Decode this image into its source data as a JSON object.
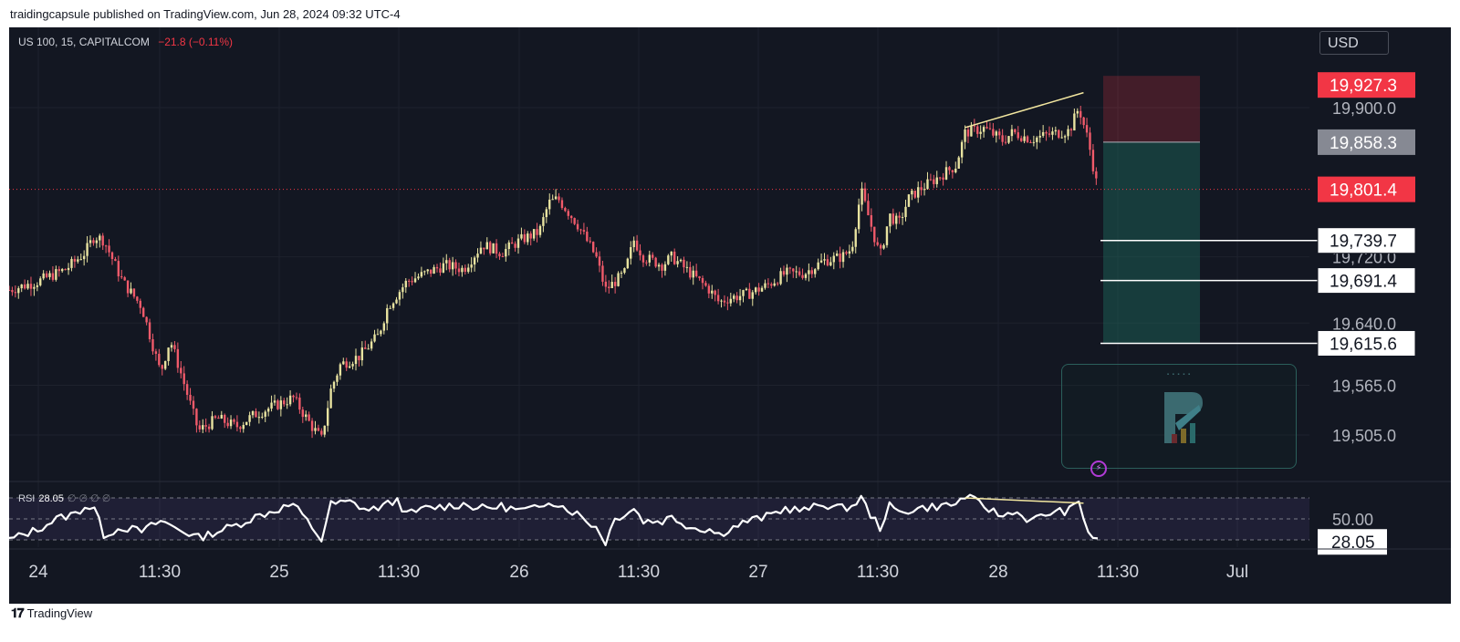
{
  "caption": "traidingcapsule published on TradingView.com, Jun 28, 2024 09:32 UTC-4",
  "symbol": {
    "name": "US 100, 15, CAPITALCOM",
    "change": "−21.8 (−0.11%)"
  },
  "currency": "USD",
  "brand": "TradingView",
  "rsi_legend": {
    "label": "RSI",
    "value": "28.05",
    "extras": "∅ ∅ ∅ ∅"
  },
  "colors": {
    "up": "#e8e3a0",
    "down": "#f05a6a",
    "background": "#131722",
    "stop": "#f23645",
    "target": "#1c6b5e"
  },
  "chart_data": {
    "type": "candlestick",
    "price_axis": {
      "range": [
        19465,
        19985
      ],
      "ticks": [
        "19,505.0",
        "19,565.0",
        "19,640.0",
        "19,720.0",
        "19,900.0"
      ]
    },
    "time_axis": {
      "labels": [
        "24",
        "11:30",
        "25",
        "11:30",
        "26",
        "11:30",
        "27",
        "11:30",
        "28",
        "11:30",
        "Jul"
      ]
    },
    "price_labels": [
      {
        "value": 19927.3,
        "text": "19,927.3",
        "style": "stop"
      },
      {
        "value": 19858.3,
        "text": "19,858.3",
        "style": "entry"
      },
      {
        "value": 19801.4,
        "text": "19,801.4",
        "style": "current"
      },
      {
        "value": 19739.7,
        "text": "19,739.7",
        "style": "level"
      },
      {
        "value": 19691.4,
        "text": "19,691.4",
        "style": "level"
      },
      {
        "value": 19615.6,
        "text": "19,615.6",
        "style": "level"
      }
    ],
    "position": {
      "entry": 19858.3,
      "stop": 19927.3,
      "target": 19615.6
    },
    "price_path": [
      [
        0,
        19680
      ],
      [
        3,
        19690
      ],
      [
        6,
        19705
      ],
      [
        8,
        19725
      ],
      [
        9,
        19745
      ],
      [
        10,
        19740
      ],
      [
        12,
        19690
      ],
      [
        14,
        19660
      ],
      [
        16,
        19580
      ],
      [
        17,
        19620
      ],
      [
        18,
        19585
      ],
      [
        20,
        19510
      ],
      [
        22,
        19525
      ],
      [
        24,
        19515
      ],
      [
        26,
        19530
      ],
      [
        28,
        19540
      ],
      [
        30,
        19550
      ],
      [
        32,
        19515
      ],
      [
        33,
        19500
      ],
      [
        34,
        19560
      ],
      [
        35,
        19590
      ],
      [
        37,
        19600
      ],
      [
        39,
        19625
      ],
      [
        40,
        19660
      ],
      [
        42,
        19690
      ],
      [
        44,
        19700
      ],
      [
        46,
        19710
      ],
      [
        48,
        19705
      ],
      [
        50,
        19735
      ],
      [
        52,
        19725
      ],
      [
        54,
        19740
      ],
      [
        56,
        19750
      ],
      [
        57,
        19785
      ],
      [
        58,
        19790
      ],
      [
        60,
        19760
      ],
      [
        62,
        19720
      ],
      [
        63,
        19680
      ],
      [
        64,
        19690
      ],
      [
        65,
        19700
      ],
      [
        66,
        19740
      ],
      [
        67,
        19720
      ],
      [
        69,
        19710
      ],
      [
        70,
        19720
      ],
      [
        72,
        19700
      ],
      [
        74,
        19680
      ],
      [
        75,
        19665
      ],
      [
        76,
        19670
      ],
      [
        78,
        19675
      ],
      [
        80,
        19685
      ],
      [
        82,
        19700
      ],
      [
        84,
        19700
      ],
      [
        86,
        19715
      ],
      [
        88,
        19720
      ],
      [
        89,
        19730
      ],
      [
        90,
        19800
      ],
      [
        91,
        19760
      ],
      [
        92,
        19720
      ],
      [
        93,
        19770
      ],
      [
        94,
        19760
      ],
      [
        95,
        19790
      ],
      [
        96,
        19800
      ],
      [
        98,
        19815
      ],
      [
        100,
        19830
      ],
      [
        101,
        19870
      ],
      [
        103,
        19875
      ],
      [
        105,
        19860
      ],
      [
        106,
        19870
      ],
      [
        108,
        19862
      ],
      [
        110,
        19868
      ],
      [
        112,
        19872
      ],
      [
        113,
        19900
      ],
      [
        114,
        19860
      ],
      [
        115,
        19801
      ]
    ],
    "price_trendline": [
      [
        101,
        19876
      ],
      [
        113.5,
        19918
      ]
    ],
    "rsi": {
      "guide_levels": [
        30,
        50,
        70
      ],
      "level_label": "50.00",
      "current": 28.05,
      "current_label": "28.05",
      "path": [
        [
          0,
          30
        ],
        [
          3,
          40
        ],
        [
          5,
          50
        ],
        [
          7,
          55
        ],
        [
          8,
          62
        ],
        [
          9,
          60
        ],
        [
          10,
          35
        ],
        [
          12,
          42
        ],
        [
          14,
          38
        ],
        [
          16,
          48
        ],
        [
          18,
          40
        ],
        [
          20,
          32
        ],
        [
          22,
          38
        ],
        [
          24,
          44
        ],
        [
          26,
          52
        ],
        [
          28,
          58
        ],
        [
          30,
          64
        ],
        [
          32,
          42
        ],
        [
          33,
          30
        ],
        [
          34,
          64
        ],
        [
          36,
          66
        ],
        [
          38,
          58
        ],
        [
          40,
          64
        ],
        [
          41,
          68
        ],
        [
          42,
          54
        ],
        [
          44,
          60
        ],
        [
          46,
          62
        ],
        [
          48,
          64
        ],
        [
          50,
          60
        ],
        [
          52,
          62
        ],
        [
          54,
          58
        ],
        [
          56,
          60
        ],
        [
          57,
          68
        ],
        [
          58,
          64
        ],
        [
          60,
          55
        ],
        [
          62,
          42
        ],
        [
          63,
          28
        ],
        [
          64,
          50
        ],
        [
          66,
          60
        ],
        [
          67,
          48
        ],
        [
          69,
          48
        ],
        [
          70,
          52
        ],
        [
          72,
          42
        ],
        [
          74,
          40
        ],
        [
          75,
          35
        ],
        [
          76,
          40
        ],
        [
          78,
          48
        ],
        [
          80,
          52
        ],
        [
          82,
          60
        ],
        [
          84,
          58
        ],
        [
          86,
          64
        ],
        [
          88,
          60
        ],
        [
          89,
          62
        ],
        [
          90,
          70
        ],
        [
          91,
          54
        ],
        [
          92,
          42
        ],
        [
          93,
          62
        ],
        [
          94,
          56
        ],
        [
          95,
          58
        ],
        [
          96,
          60
        ],
        [
          98,
          62
        ],
        [
          100,
          64
        ],
        [
          101,
          72
        ],
        [
          103,
          62
        ],
        [
          105,
          52
        ],
        [
          106,
          58
        ],
        [
          108,
          48
        ],
        [
          110,
          56
        ],
        [
          112,
          58
        ],
        [
          113,
          66
        ],
        [
          114,
          38
        ],
        [
          115,
          28
        ]
      ],
      "trendline": [
        [
          101,
          70
        ],
        [
          113.5,
          65
        ]
      ]
    }
  }
}
